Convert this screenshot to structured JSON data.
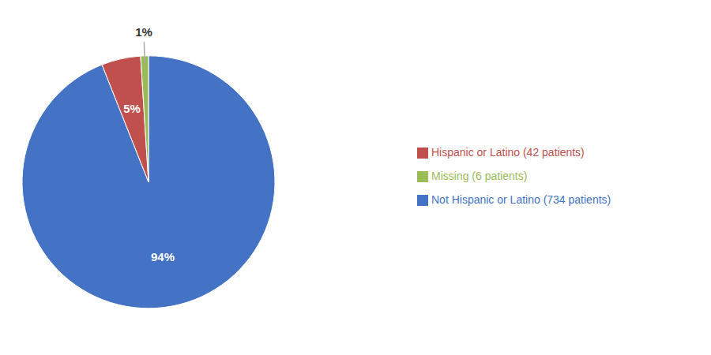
{
  "chart_data": {
    "type": "pie",
    "categories": [
      "Not Hispanic or Latino (734 patients)",
      "Hispanic or Latino (42 patients)",
      "Missing (6 patients)"
    ],
    "values": [
      94,
      5,
      1
    ],
    "value_labels": [
      "94%",
      "5%",
      "1%"
    ],
    "colors": [
      "#4472C4",
      "#C0504D",
      "#9BBB59"
    ],
    "data_labels": true,
    "legend": "right"
  }
}
